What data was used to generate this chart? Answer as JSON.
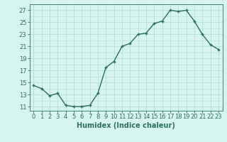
{
  "x": [
    0,
    1,
    2,
    3,
    4,
    5,
    6,
    7,
    8,
    9,
    10,
    11,
    12,
    13,
    14,
    15,
    16,
    17,
    18,
    19,
    20,
    21,
    22,
    23
  ],
  "y": [
    14.5,
    14.0,
    12.8,
    13.2,
    11.2,
    11.0,
    11.0,
    11.2,
    13.2,
    17.5,
    18.5,
    21.0,
    21.5,
    23.0,
    23.2,
    24.8,
    25.2,
    27.0,
    26.8,
    27.0,
    25.2,
    23.0,
    21.3,
    20.5
  ],
  "line_color": "#2d6e63",
  "marker": "+",
  "bg_color": "#d6f5f0",
  "grid_color": "#b8ddd8",
  "xlabel": "Humidex (Indice chaleur)",
  "yticks": [
    11,
    13,
    15,
    17,
    19,
    21,
    23,
    25,
    27
  ],
  "xlim": [
    -0.5,
    23.5
  ],
  "ylim": [
    10.3,
    28.0
  ],
  "xticks": [
    0,
    1,
    2,
    3,
    4,
    5,
    6,
    7,
    8,
    9,
    10,
    11,
    12,
    13,
    14,
    15,
    16,
    17,
    18,
    19,
    20,
    21,
    22,
    23
  ],
  "tick_label_fontsize": 6.0,
  "xlabel_fontsize": 7.0,
  "linewidth": 1.0,
  "markersize": 3.5,
  "markeredgewidth": 1.0
}
